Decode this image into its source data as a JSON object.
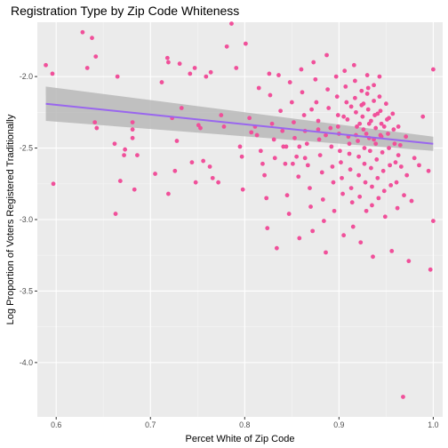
{
  "chart_data": {
    "type": "scatter",
    "title": "Registration Type by Zip Code Whiteness",
    "xlabel": "Percet White of Zip Code",
    "ylabel": "Log Proportion of Voters Registered Traditionally",
    "xlim": [
      0.58,
      1.01
    ],
    "ylim": [
      -4.38,
      -1.62
    ],
    "x_ticks": [
      0.6,
      0.7,
      0.8,
      0.9,
      1.0
    ],
    "x_tick_labels": [
      "0.6",
      "0.7",
      "0.8",
      "0.9",
      "1.0"
    ],
    "y_ticks": [
      -4.0,
      -3.5,
      -3.0,
      -2.5,
      -2.0
    ],
    "y_tick_labels": [
      "-4.0",
      "-3.5",
      "-3.0",
      "-2.5",
      "-2.0"
    ],
    "grid": true,
    "point_color": "#f0509a",
    "trend_color": "#9966ee",
    "ribbon_color": "#b8b8b8",
    "panel_color": "#ebebeb",
    "trend": {
      "x": [
        0.589,
        1.0
      ],
      "y": [
        -2.19,
        -2.47
      ],
      "ci_lower": [
        -2.31,
        -2.52
      ],
      "ci_upper": [
        -2.07,
        -2.42
      ]
    },
    "points": [
      [
        0.589,
        -1.92
      ],
      [
        0.596,
        -1.98
      ],
      [
        0.597,
        -2.75
      ],
      [
        0.628,
        -1.69
      ],
      [
        0.633,
        -1.94
      ],
      [
        0.638,
        -1.73
      ],
      [
        0.642,
        -1.86
      ],
      [
        0.641,
        -2.32
      ],
      [
        0.643,
        -2.36
      ],
      [
        0.662,
        -2.47
      ],
      [
        0.663,
        -2.96
      ],
      [
        0.665,
        -2.0
      ],
      [
        0.668,
        -2.73
      ],
      [
        0.672,
        -2.55
      ],
      [
        0.673,
        -2.51
      ],
      [
        0.681,
        -2.32
      ],
      [
        0.681,
        -2.37
      ],
      [
        0.681,
        -2.43
      ],
      [
        0.683,
        -2.79
      ],
      [
        0.686,
        -2.55
      ],
      [
        0.705,
        -2.68
      ],
      [
        0.712,
        -2.04
      ],
      [
        0.718,
        -1.87
      ],
      [
        0.719,
        -1.9
      ],
      [
        0.719,
        -2.82
      ],
      [
        0.723,
        -2.29
      ],
      [
        0.726,
        -2.66
      ],
      [
        0.728,
        -2.45
      ],
      [
        0.731,
        -1.91
      ],
      [
        0.733,
        -2.22
      ],
      [
        0.742,
        -1.98
      ],
      [
        0.744,
        -2.6
      ],
      [
        0.747,
        -1.94
      ],
      [
        0.748,
        -2.74
      ],
      [
        0.751,
        -2.34
      ],
      [
        0.753,
        -2.36
      ],
      [
        0.756,
        -2.59
      ],
      [
        0.759,
        -2.0
      ],
      [
        0.763,
        -2.63
      ],
      [
        0.764,
        -1.97
      ],
      [
        0.766,
        -2.71
      ],
      [
        0.772,
        -2.74
      ],
      [
        0.775,
        -2.27
      ],
      [
        0.778,
        -2.35
      ],
      [
        0.781,
        -1.79
      ],
      [
        0.783,
        -1.47
      ],
      [
        0.786,
        -1.63
      ],
      [
        0.791,
        -1.94
      ],
      [
        0.795,
        -2.49
      ],
      [
        0.797,
        -2.56
      ],
      [
        0.798,
        -2.79
      ],
      [
        0.801,
        -1.77
      ],
      [
        0.805,
        -2.29
      ],
      [
        0.807,
        -2.39
      ],
      [
        0.811,
        -2.35
      ],
      [
        0.813,
        -2.41
      ],
      [
        0.815,
        -2.08
      ],
      [
        0.817,
        -2.52
      ],
      [
        0.819,
        -2.61
      ],
      [
        0.821,
        -2.69
      ],
      [
        0.823,
        -2.85
      ],
      [
        0.824,
        -3.06
      ],
      [
        0.826,
        -1.98
      ],
      [
        0.827,
        -2.13
      ],
      [
        0.829,
        -2.33
      ],
      [
        0.831,
        -2.44
      ],
      [
        0.832,
        -2.57
      ],
      [
        0.834,
        -3.2
      ],
      [
        0.836,
        -1.99
      ],
      [
        0.838,
        -2.24
      ],
      [
        0.84,
        -2.38
      ],
      [
        0.841,
        -2.49
      ],
      [
        0.843,
        -2.61
      ],
      [
        0.845,
        -2.83
      ],
      [
        0.847,
        -2.96
      ],
      [
        0.848,
        -2.04
      ],
      [
        0.85,
        -2.18
      ],
      [
        0.852,
        -2.32
      ],
      [
        0.853,
        -2.43
      ],
      [
        0.855,
        -2.56
      ],
      [
        0.857,
        -2.7
      ],
      [
        0.858,
        -3.13
      ],
      [
        0.86,
        -1.95
      ],
      [
        0.861,
        -2.11
      ],
      [
        0.863,
        -2.27
      ],
      [
        0.864,
        -2.38
      ],
      [
        0.866,
        -2.47
      ],
      [
        0.867,
        -2.62
      ],
      [
        0.869,
        -2.78
      ],
      [
        0.87,
        -2.91
      ],
      [
        0.872,
        -3.08
      ],
      [
        0.873,
        -1.9
      ],
      [
        0.875,
        -2.02
      ],
      [
        0.876,
        -2.18
      ],
      [
        0.878,
        -2.31
      ],
      [
        0.879,
        -2.44
      ],
      [
        0.88,
        -2.55
      ],
      [
        0.882,
        -2.67
      ],
      [
        0.883,
        -2.86
      ],
      [
        0.884,
        -3.01
      ],
      [
        0.886,
        -3.23
      ],
      [
        0.887,
        -1.85
      ],
      [
        0.888,
        -2.09
      ],
      [
        0.889,
        -2.22
      ],
      [
        0.891,
        -2.36
      ],
      [
        0.892,
        -2.49
      ],
      [
        0.893,
        -2.63
      ],
      [
        0.894,
        -2.74
      ],
      [
        0.895,
        -2.94
      ],
      [
        0.897,
        -2.0
      ],
      [
        0.898,
        -2.14
      ],
      [
        0.899,
        -2.27
      ],
      [
        0.9,
        -2.4
      ],
      [
        0.901,
        -2.52
      ],
      [
        0.902,
        -2.6
      ],
      [
        0.903,
        -2.71
      ],
      [
        0.904,
        -2.82
      ],
      [
        0.905,
        -3.11
      ],
      [
        0.906,
        -1.96
      ],
      [
        0.907,
        -2.07
      ],
      [
        0.908,
        -2.18
      ],
      [
        0.909,
        -2.3
      ],
      [
        0.91,
        -2.42
      ],
      [
        0.911,
        -2.54
      ],
      [
        0.912,
        -2.65
      ],
      [
        0.913,
        -2.78
      ],
      [
        0.914,
        -2.88
      ],
      [
        0.915,
        -3.05
      ],
      [
        0.916,
        -1.92
      ],
      [
        0.917,
        -2.03
      ],
      [
        0.917,
        -2.15
      ],
      [
        0.918,
        -2.25
      ],
      [
        0.919,
        -2.35
      ],
      [
        0.92,
        -2.45
      ],
      [
        0.921,
        -2.56
      ],
      [
        0.921,
        -2.69
      ],
      [
        0.922,
        -2.84
      ],
      [
        0.923,
        -3.16
      ],
      [
        0.924,
        -2.1
      ],
      [
        0.924,
        -2.2
      ],
      [
        0.925,
        -2.28
      ],
      [
        0.926,
        -2.37
      ],
      [
        0.927,
        -2.5
      ],
      [
        0.927,
        -2.61
      ],
      [
        0.928,
        -2.74
      ],
      [
        0.929,
        -2.94
      ],
      [
        0.93,
        -1.99
      ],
      [
        0.93,
        -2.12
      ],
      [
        0.931,
        -2.23
      ],
      [
        0.932,
        -2.33
      ],
      [
        0.932,
        -2.43
      ],
      [
        0.933,
        -2.52
      ],
      [
        0.934,
        -2.64
      ],
      [
        0.935,
        -2.77
      ],
      [
        0.935,
        -2.9
      ],
      [
        0.936,
        -3.26
      ],
      [
        0.937,
        -2.06
      ],
      [
        0.937,
        -2.17
      ],
      [
        0.938,
        -2.27
      ],
      [
        0.939,
        -2.36
      ],
      [
        0.939,
        -2.47
      ],
      [
        0.94,
        -2.58
      ],
      [
        0.941,
        -2.71
      ],
      [
        0.942,
        -2.85
      ],
      [
        0.943,
        -2.0
      ],
      [
        0.943,
        -2.14
      ],
      [
        0.944,
        -2.24
      ],
      [
        0.945,
        -2.33
      ],
      [
        0.945,
        -2.42
      ],
      [
        0.946,
        -2.53
      ],
      [
        0.947,
        -2.66
      ],
      [
        0.948,
        -2.8
      ],
      [
        0.949,
        -2.98
      ],
      [
        0.95,
        -2.19
      ],
      [
        0.951,
        -2.3
      ],
      [
        0.952,
        -2.4
      ],
      [
        0.953,
        -2.5
      ],
      [
        0.954,
        -2.62
      ],
      [
        0.955,
        -2.76
      ],
      [
        0.956,
        -3.22
      ],
      [
        0.957,
        -2.26
      ],
      [
        0.958,
        -2.37
      ],
      [
        0.959,
        -2.47
      ],
      [
        0.96,
        -2.6
      ],
      [
        0.961,
        -2.74
      ],
      [
        0.962,
        -2.92
      ],
      [
        0.963,
        -2.35
      ],
      [
        0.965,
        -2.48
      ],
      [
        0.966,
        -2.63
      ],
      [
        0.968,
        -4.24
      ],
      [
        0.969,
        -2.83
      ],
      [
        0.972,
        -2.69
      ],
      [
        0.974,
        -3.29
      ],
      [
        0.977,
        -2.87
      ],
      [
        0.98,
        -2.57
      ],
      [
        0.985,
        -2.62
      ],
      [
        0.989,
        -2.28
      ],
      [
        0.995,
        -2.66
      ],
      [
        0.997,
        -3.35
      ],
      [
        1.0,
        -1.95
      ],
      [
        1.0,
        -3.01
      ],
      [
        0.918,
        -2.41
      ],
      [
        0.926,
        -2.19
      ],
      [
        0.934,
        -2.31
      ],
      [
        0.941,
        -2.26
      ],
      [
        0.922,
        -2.33
      ],
      [
        0.929,
        -2.4
      ],
      [
        0.937,
        -2.44
      ],
      [
        0.911,
        -2.47
      ],
      [
        0.948,
        -2.35
      ],
      [
        0.905,
        -2.28
      ],
      [
        0.913,
        -2.21
      ],
      [
        0.931,
        -2.08
      ],
      [
        0.944,
        -2.41
      ],
      [
        0.953,
        -2.29
      ],
      [
        0.899,
        -2.35
      ],
      [
        0.886,
        -2.41
      ],
      [
        0.878,
        -2.37
      ],
      [
        0.871,
        -2.23
      ],
      [
        0.864,
        -2.57
      ],
      [
        0.858,
        -2.49
      ],
      [
        0.851,
        -2.61
      ],
      [
        0.844,
        -2.49
      ],
      [
        0.963,
        -2.55
      ],
      [
        0.971,
        -2.42
      ]
    ]
  }
}
